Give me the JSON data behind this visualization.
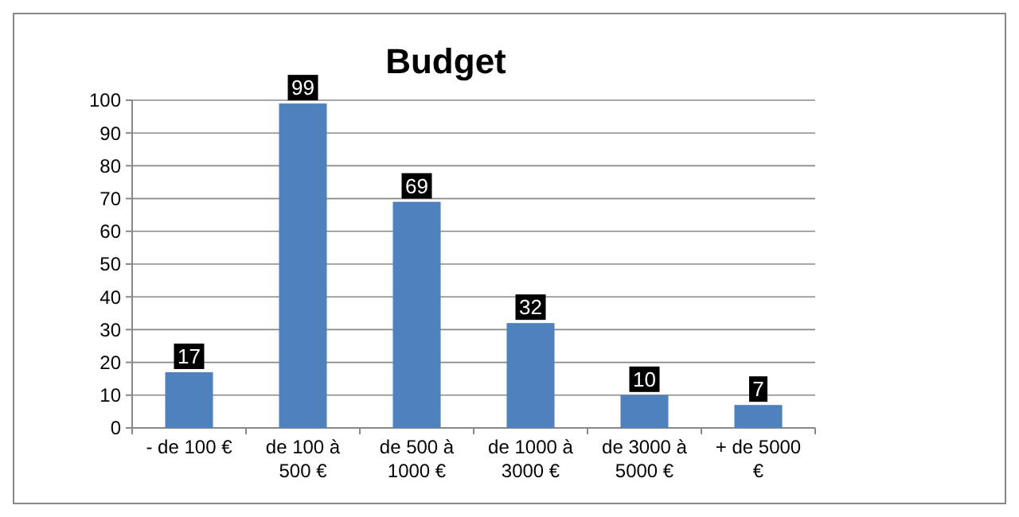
{
  "chart_data": {
    "type": "bar",
    "title": "Budget",
    "categories": [
      "- de 100 €",
      "de 100 à 500 €",
      "de 500 à 1000 €",
      "de 1000 à 3000 €",
      "de 3000 à 5000 €",
      "+ de 5000 €"
    ],
    "values": [
      17,
      99,
      69,
      32,
      10,
      7
    ],
    "color": "#4f81bd",
    "ylim": [
      0,
      100
    ],
    "yticks": [
      0,
      10,
      20,
      30,
      40,
      50,
      60,
      70,
      80,
      90,
      100
    ],
    "grid": "y",
    "data_labels": true
  }
}
